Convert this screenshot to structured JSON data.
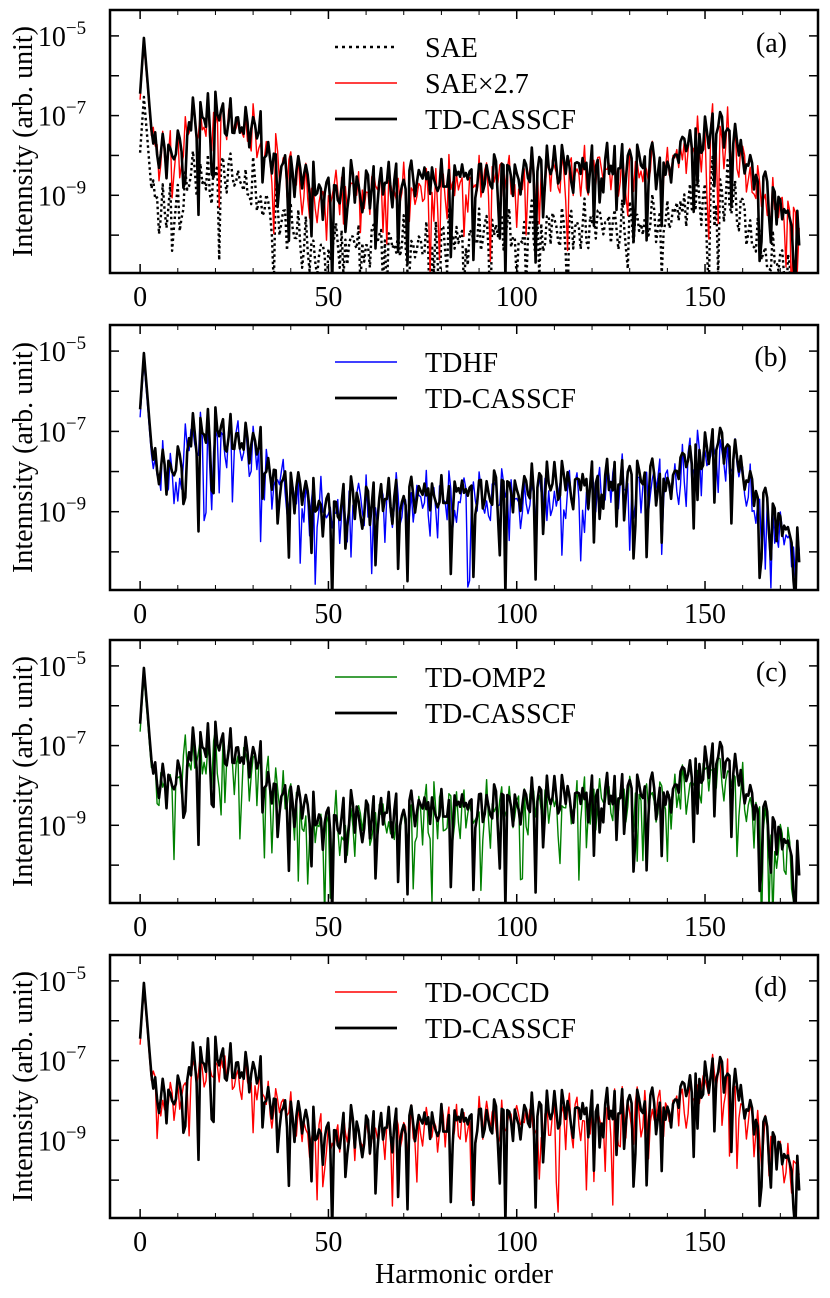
{
  "figure": {
    "xlabel": "Harmonic order",
    "ylabel": "Intennsity (arb. unit)"
  },
  "chart_data": [
    {
      "type": "line",
      "panel": "(a)",
      "xlim": [
        -8,
        180
      ],
      "yscale": "log",
      "ylim_exp": [
        -10.95,
        -4.35
      ],
      "xticks": [
        0,
        50,
        100,
        150
      ],
      "yticks": [
        {
          "exp": -5,
          "base": "10",
          "sup": "−5"
        },
        {
          "exp": -7,
          "base": "10",
          "sup": "−7"
        },
        {
          "exp": -9,
          "base": "10",
          "sup": "−9"
        }
      ],
      "legend": "top-center",
      "series": [
        {
          "name": "SAE",
          "color": "#000000",
          "style": "dotted",
          "scale": 0.37,
          "noise": 0.55,
          "seed": 11,
          "offset": -0.9
        },
        {
          "name": "SAE×2.7",
          "color": "#ff0000",
          "style": "solid",
          "scale": 1.0,
          "noise": 0.55,
          "seed": 11,
          "offset": 0.0
        },
        {
          "name": "TD-CASSCF",
          "color": "#000000",
          "style": "solid-bold",
          "noise": 0.45,
          "seed": 3,
          "offset": 0.15
        }
      ]
    },
    {
      "type": "line",
      "panel": "(b)",
      "xlim": [
        -8,
        180
      ],
      "yscale": "log",
      "ylim_exp": [
        -10.95,
        -4.35
      ],
      "xticks": [
        0,
        50,
        100,
        150
      ],
      "yticks": [
        {
          "exp": -5,
          "base": "10",
          "sup": "−5"
        },
        {
          "exp": -7,
          "base": "10",
          "sup": "−7"
        },
        {
          "exp": -9,
          "base": "10",
          "sup": "−9"
        }
      ],
      "legend": "top-center",
      "series": [
        {
          "name": "TDHF",
          "color": "#0000ff",
          "style": "solid",
          "noise": 0.6,
          "seed": 21,
          "offset": -0.05
        },
        {
          "name": "TD-CASSCF",
          "color": "#000000",
          "style": "solid-bold",
          "noise": 0.45,
          "seed": 3,
          "offset": 0.15
        }
      ]
    },
    {
      "type": "line",
      "panel": "(c)",
      "xlim": [
        -8,
        180
      ],
      "yscale": "log",
      "ylim_exp": [
        -10.95,
        -4.35
      ],
      "xticks": [
        0,
        50,
        100,
        150
      ],
      "yticks": [
        {
          "exp": -5,
          "base": "10",
          "sup": "−5"
        },
        {
          "exp": -7,
          "base": "10",
          "sup": "−7"
        },
        {
          "exp": -9,
          "base": "10",
          "sup": "−9"
        }
      ],
      "legend": "top-center",
      "series": [
        {
          "name": "TD-OMP2",
          "color": "#008000",
          "style": "solid",
          "noise": 0.6,
          "seed": 31,
          "offset": -0.05
        },
        {
          "name": "TD-CASSCF",
          "color": "#000000",
          "style": "solid-bold",
          "noise": 0.45,
          "seed": 3,
          "offset": 0.15
        }
      ]
    },
    {
      "type": "line",
      "panel": "(d)",
      "xlim": [
        -8,
        180
      ],
      "yscale": "log",
      "ylim_exp": [
        -10.95,
        -4.35
      ],
      "xticks": [
        0,
        50,
        100,
        150
      ],
      "yticks": [
        {
          "exp": -5,
          "base": "10",
          "sup": "−5"
        },
        {
          "exp": -7,
          "base": "10",
          "sup": "−7"
        },
        {
          "exp": -9,
          "base": "10",
          "sup": "−9"
        }
      ],
      "legend": "top-center",
      "series": [
        {
          "name": "TD-OCCD",
          "color": "#ff0000",
          "style": "solid",
          "noise": 0.5,
          "seed": 41,
          "offset": 0.0
        },
        {
          "name": "TD-CASSCF",
          "color": "#000000",
          "style": "solid-bold",
          "noise": 0.45,
          "seed": 3,
          "offset": 0.15
        }
      ]
    }
  ],
  "spectrum_envelope": {
    "description": "approximate log10 envelope of harmonic spectra, harmonic order vs log10 intensity",
    "x": [
      0,
      1,
      3,
      5,
      10,
      13,
      20,
      30,
      38,
      45,
      50,
      55,
      60,
      70,
      80,
      100,
      120,
      140,
      145,
      150,
      153,
      157,
      160,
      165,
      170,
      175
    ],
    "y": [
      -6.6,
      -5.2,
      -7.5,
      -8.1,
      -8.0,
      -7.3,
      -7.2,
      -7.5,
      -8.3,
      -8.9,
      -9.0,
      -8.9,
      -8.9,
      -8.8,
      -8.7,
      -8.6,
      -8.45,
      -8.3,
      -8.0,
      -7.65,
      -7.45,
      -7.6,
      -8.2,
      -9.0,
      -9.45,
      -9.8
    ]
  }
}
